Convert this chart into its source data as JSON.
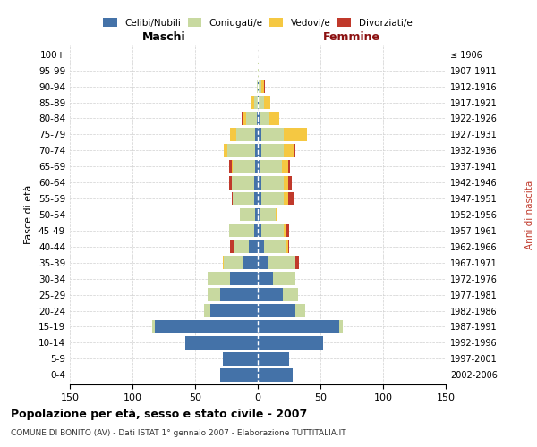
{
  "age_groups": [
    "0-4",
    "5-9",
    "10-14",
    "15-19",
    "20-24",
    "25-29",
    "30-34",
    "35-39",
    "40-44",
    "45-49",
    "50-54",
    "55-59",
    "60-64",
    "65-69",
    "70-74",
    "75-79",
    "80-84",
    "85-89",
    "90-94",
    "95-99",
    "100+"
  ],
  "birth_years": [
    "2002-2006",
    "1997-2001",
    "1992-1996",
    "1987-1991",
    "1982-1986",
    "1977-1981",
    "1972-1976",
    "1967-1971",
    "1962-1966",
    "1957-1961",
    "1952-1956",
    "1947-1951",
    "1942-1946",
    "1937-1941",
    "1932-1936",
    "1927-1931",
    "1922-1926",
    "1917-1921",
    "1912-1916",
    "1907-1911",
    "≤ 1906"
  ],
  "male": {
    "celibi": [
      30,
      28,
      58,
      82,
      38,
      30,
      22,
      12,
      7,
      3,
      2,
      3,
      3,
      2,
      2,
      2,
      1,
      0,
      0,
      0,
      0
    ],
    "coniugati": [
      0,
      0,
      0,
      2,
      5,
      10,
      18,
      15,
      12,
      20,
      12,
      17,
      18,
      18,
      22,
      15,
      8,
      3,
      1,
      0,
      0
    ],
    "vedovi": [
      0,
      0,
      0,
      0,
      0,
      0,
      0,
      1,
      0,
      0,
      0,
      0,
      0,
      1,
      3,
      5,
      3,
      2,
      0,
      0,
      0
    ],
    "divorziati": [
      0,
      0,
      0,
      0,
      0,
      0,
      0,
      0,
      3,
      0,
      0,
      1,
      2,
      2,
      0,
      0,
      1,
      0,
      0,
      0,
      0
    ]
  },
  "female": {
    "nubili": [
      28,
      25,
      52,
      65,
      30,
      20,
      12,
      8,
      5,
      3,
      2,
      3,
      3,
      2,
      3,
      3,
      2,
      1,
      1,
      0,
      0
    ],
    "coniugate": [
      0,
      0,
      0,
      3,
      8,
      12,
      18,
      22,
      18,
      18,
      12,
      18,
      18,
      17,
      18,
      18,
      7,
      4,
      2,
      1,
      0
    ],
    "vedove": [
      0,
      0,
      0,
      0,
      0,
      0,
      0,
      0,
      1,
      1,
      1,
      3,
      3,
      5,
      8,
      18,
      8,
      5,
      2,
      0,
      0
    ],
    "divorziate": [
      0,
      0,
      0,
      0,
      0,
      0,
      0,
      3,
      1,
      3,
      1,
      5,
      3,
      2,
      1,
      0,
      0,
      0,
      1,
      0,
      0
    ]
  },
  "colors": {
    "celibi": "#4472a8",
    "coniugati": "#c8d9a0",
    "vedovi": "#f5c842",
    "divorziati": "#c0392b"
  },
  "xlim": 150,
  "title": "Popolazione per età, sesso e stato civile - 2007",
  "subtitle": "COMUNE DI BONITO (AV) - Dati ISTAT 1° gennaio 2007 - Elaborazione TUTTITALIA.IT",
  "ylabel": "Fasce di età",
  "right_ylabel": "Anni di nascita"
}
